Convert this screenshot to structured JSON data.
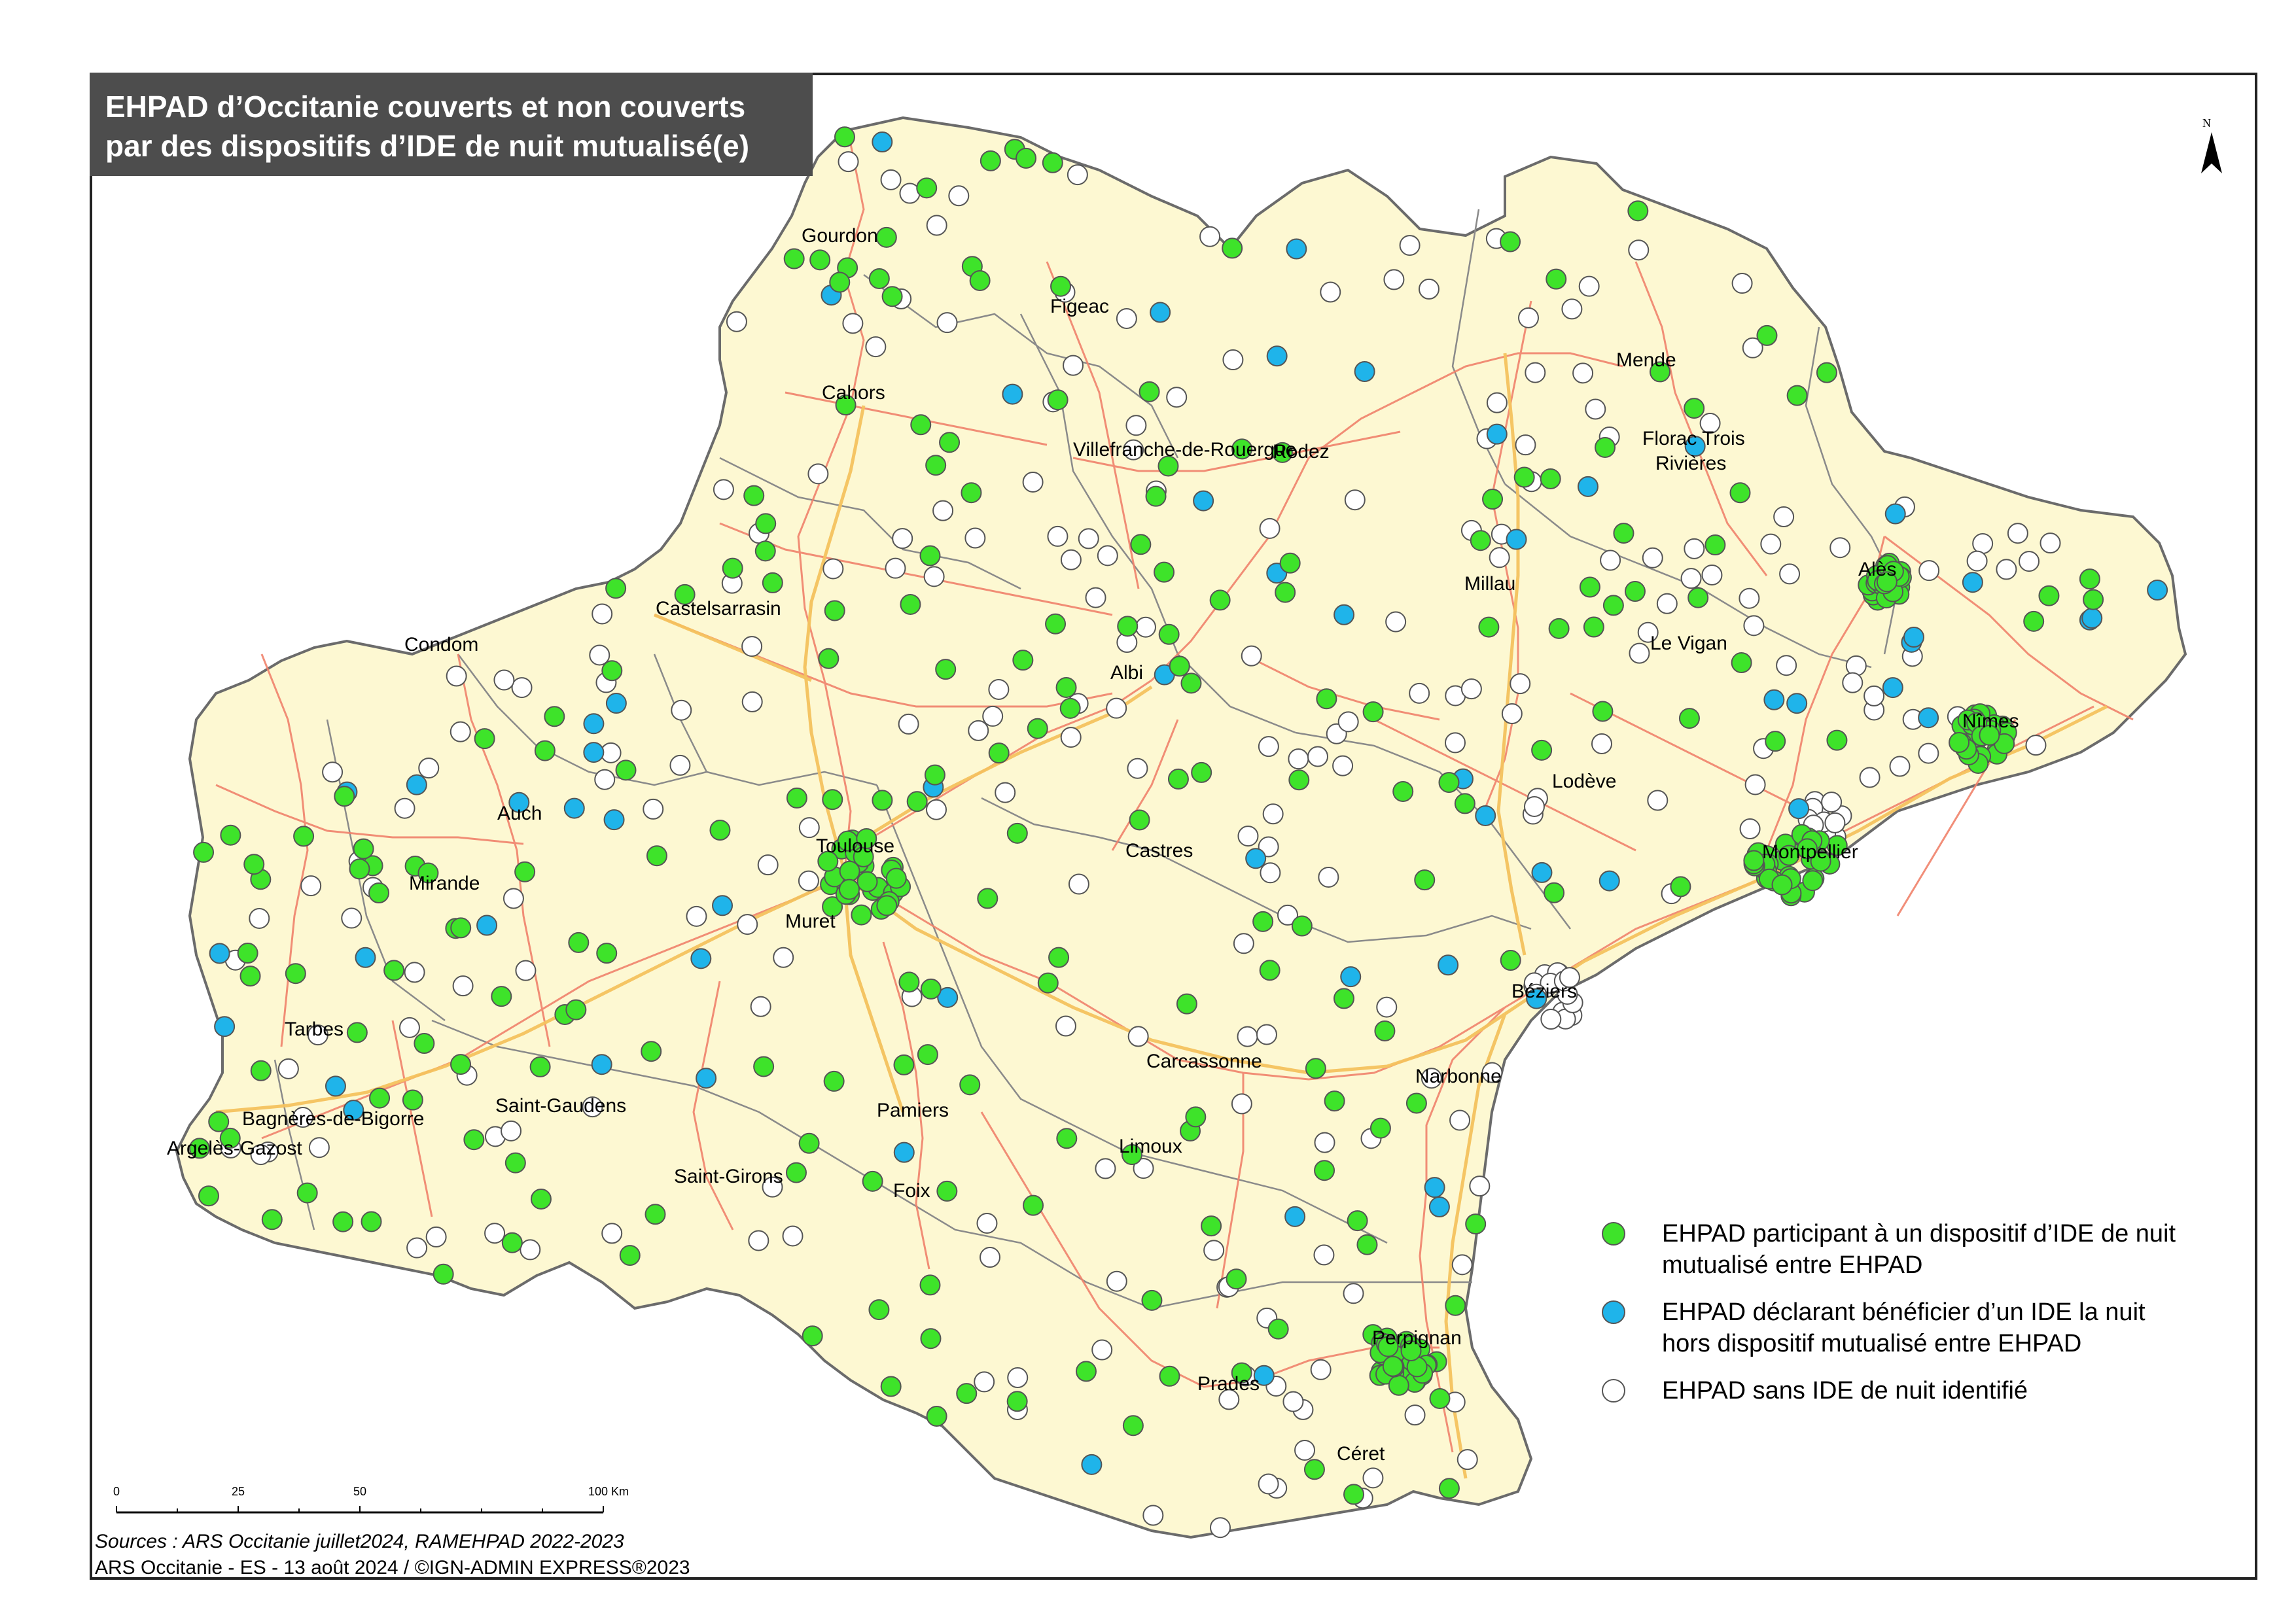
{
  "title": {
    "line1": "EHPAD d’Occitanie couverts et non couverts",
    "line2": "par des dispositifs d’IDE de nuit mutualisé(e)"
  },
  "colors": {
    "region_fill": "#fdf8d2",
    "border": "#6b6b6b",
    "roads": "#f0826b",
    "highways": "#f4c25e",
    "green": "#3ee32a",
    "blue": "#1fb4ea",
    "white": "#ffffff"
  },
  "cities": [
    "Gourdon",
    "Figeac",
    "Cahors",
    "Villefranche-de-Rouergue",
    "Rodez",
    "Mende",
    "Florac Trois",
    "Rivières",
    "Millau",
    "Alès",
    "Le Vigan",
    "Castelsarrasin",
    "Condom",
    "Albi",
    "Nîmes",
    "Auch",
    "Lodève",
    "Toulouse",
    "Castres",
    "Montpellier",
    "Mirande",
    "Muret",
    "Béziers",
    "Tarbes",
    "Carcassonne",
    "Narbonne",
    "Saint-Gaudens",
    "Bagnères-de-Bigorre",
    "Pamiers",
    "Argelès-Gazost",
    "Limoux",
    "Saint-Girons",
    "Foix",
    "Perpignan",
    "Prades",
    "Céret"
  ],
  "legend": [
    {
      "label_line1": "EHPAD participant à un dispositif d’IDE de nuit",
      "label_line2": "mutualisé entre EHPAD",
      "color": "#3ee32a"
    },
    {
      "label_line1": "EHPAD déclarant bénéficier d’un IDE la nuit",
      "label_line2": "hors dispositif mutualisé entre EHPAD",
      "color": "#1fb4ea"
    },
    {
      "label_line1": "EHPAD sans IDE de nuit identifié",
      "label_line2": "",
      "color": "#ffffff"
    }
  ],
  "scale": {
    "ticks": [
      "0",
      "25",
      "50",
      "100 Km"
    ]
  },
  "north_label": "N",
  "sources": "Sources : ARS Occitanie juillet2024, RAMEHPAD 2022-2023",
  "credits": "ARS Occitanie - ES - 13 août 2024 / ©IGN-ADMIN EXPRESS®2023"
}
